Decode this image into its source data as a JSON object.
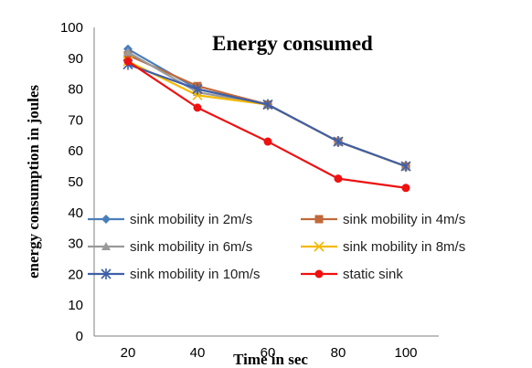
{
  "chart_data": {
    "type": "line",
    "title": "Energy consumed",
    "xlabel": "Time in sec",
    "ylabel": "energy consumption in joules",
    "x": [
      20,
      40,
      60,
      80,
      100
    ],
    "ylim": [
      0,
      100
    ],
    "yticks": [
      0,
      10,
      20,
      30,
      40,
      50,
      60,
      70,
      80,
      90,
      100
    ],
    "grid": false,
    "legend_position": "inside-lower",
    "series": [
      {
        "name": "sink mobility in 2m/s",
        "color": "#4a7ebb",
        "marker": "diamond",
        "values": [
          93,
          80,
          75,
          63,
          55
        ]
      },
      {
        "name": "sink mobility in 4m/s",
        "color": "#c0693a",
        "marker": "square",
        "values": [
          91,
          81,
          75,
          63,
          55
        ]
      },
      {
        "name": "sink mobility in 6m/s",
        "color": "#9a9a9a",
        "marker": "triangle",
        "values": [
          92,
          79,
          75,
          63,
          55
        ]
      },
      {
        "name": "sink mobility in 8m/s",
        "color": "#f5b800",
        "marker": "x",
        "values": [
          89,
          78,
          75,
          63,
          55
        ]
      },
      {
        "name": "sink mobility in 10m/s",
        "color": "#3f5fa8",
        "marker": "star",
        "values": [
          88,
          80,
          75,
          63,
          55
        ]
      },
      {
        "name": "static sink",
        "color": "#ee1111",
        "marker": "circle",
        "values": [
          89,
          74,
          63,
          51,
          48
        ]
      }
    ]
  }
}
